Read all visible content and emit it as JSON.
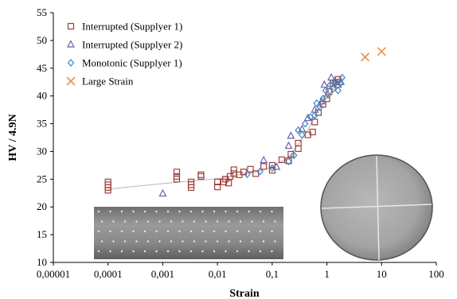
{
  "chart_data": {
    "type": "scatter",
    "title": "",
    "xlabel": "Strain",
    "ylabel": "HV / 4.9N",
    "x_scale": "log",
    "xlim": [
      1e-05,
      100
    ],
    "ylim": [
      10,
      55
    ],
    "grid": false,
    "legend_position": "top-left",
    "x_tick_labels": [
      "0,00001",
      "0,0001",
      "0,001",
      "0,01",
      "0,1",
      "1",
      "10",
      "100"
    ],
    "y_tick_labels": [
      "10",
      "15",
      "20",
      "25",
      "30",
      "35",
      "40",
      "45",
      "50",
      "55"
    ],
    "series": [
      {
        "name": "Interrupted (Supplyer 1)",
        "marker": "square",
        "color": "#A0403A",
        "points": [
          [
            0.0001,
            23.0
          ],
          [
            0.0001,
            23.5
          ],
          [
            0.0001,
            24.0
          ],
          [
            0.0001,
            24.5
          ],
          [
            0.0018,
            25.0
          ],
          [
            0.0018,
            25.5
          ],
          [
            0.0018,
            26.3
          ],
          [
            0.0033,
            23.5
          ],
          [
            0.0033,
            24.0
          ],
          [
            0.0033,
            24.5
          ],
          [
            0.005,
            25.5
          ],
          [
            0.005,
            25.8
          ],
          [
            0.01,
            23.6
          ],
          [
            0.01,
            24.5
          ],
          [
            0.013,
            24.5
          ],
          [
            0.014,
            25.0
          ],
          [
            0.016,
            24.3
          ],
          [
            0.017,
            25.5
          ],
          [
            0.02,
            26.0
          ],
          [
            0.02,
            26.7
          ],
          [
            0.025,
            25.8
          ],
          [
            0.03,
            26.3
          ],
          [
            0.04,
            26.8
          ],
          [
            0.05,
            26.0
          ],
          [
            0.07,
            27.3
          ],
          [
            0.1,
            26.6
          ],
          [
            0.1,
            27.5
          ],
          [
            0.15,
            28.5
          ],
          [
            0.2,
            28.3
          ],
          [
            0.22,
            29.5
          ],
          [
            0.3,
            30.5
          ],
          [
            0.3,
            31.5
          ],
          [
            0.45,
            33.0
          ],
          [
            0.55,
            33.5
          ],
          [
            0.6,
            35.3
          ],
          [
            0.7,
            37.0
          ],
          [
            0.85,
            38.5
          ],
          [
            1.0,
            39.5
          ],
          [
            1.1,
            40.8
          ],
          [
            1.3,
            42.3
          ],
          [
            1.5,
            42.5
          ],
          [
            1.6,
            43.0
          ]
        ]
      },
      {
        "name": "Interrupted (Supplyer 2)",
        "marker": "triangle",
        "color": "#6A62AD",
        "points": [
          [
            0.001,
            22.4
          ],
          [
            0.07,
            28.4
          ],
          [
            0.12,
            27.2
          ],
          [
            0.2,
            31.0
          ],
          [
            0.22,
            32.8
          ],
          [
            0.35,
            34.0
          ],
          [
            0.45,
            36.0
          ],
          [
            0.6,
            37.5
          ],
          [
            0.8,
            39.0
          ],
          [
            0.9,
            42.0
          ],
          [
            1.2,
            43.3
          ],
          [
            1.4,
            42.7
          ],
          [
            1.6,
            42.0
          ],
          [
            1.8,
            42.5
          ]
        ]
      },
      {
        "name": "Monotonic (Supplyer 1)",
        "marker": "diamond",
        "color": "#3E86C0",
        "points": [
          [
            0.035,
            25.9
          ],
          [
            0.06,
            26.4
          ],
          [
            0.1,
            27.0
          ],
          [
            0.2,
            28.2
          ],
          [
            0.25,
            29.3
          ],
          [
            0.3,
            33.8
          ],
          [
            0.35,
            33.0
          ],
          [
            0.4,
            35.0
          ],
          [
            0.5,
            36.2
          ],
          [
            0.6,
            36.5
          ],
          [
            0.65,
            38.7
          ],
          [
            0.75,
            38.0
          ],
          [
            0.85,
            39.5
          ],
          [
            0.95,
            41.0
          ],
          [
            1.05,
            40.2
          ],
          [
            1.15,
            42.0
          ],
          [
            1.3,
            41.3
          ],
          [
            1.45,
            42.5
          ],
          [
            1.6,
            41.0
          ],
          [
            1.75,
            42.3
          ],
          [
            1.9,
            43.3
          ]
        ]
      },
      {
        "name": "Large Strain",
        "marker": "x",
        "color": "#E8914A",
        "points": [
          [
            5.0,
            47.0
          ],
          [
            10.0,
            48.0
          ]
        ]
      }
    ],
    "trend_line": {
      "color": "#B8B8B8",
      "points": [
        [
          0.0001,
          23.2
        ],
        [
          0.001,
          24.2
        ],
        [
          0.01,
          25.1
        ],
        [
          0.05,
          26.3
        ],
        [
          0.1,
          27.2
        ],
        [
          0.2,
          29.0
        ],
        [
          0.4,
          33.0
        ],
        [
          0.7,
          37.5
        ],
        [
          1.0,
          39.8
        ],
        [
          1.5,
          42.0
        ],
        [
          2.0,
          43.2
        ]
      ]
    },
    "inset_images": [
      {
        "name": "indentation-grid-photo",
        "description_visible": false
      },
      {
        "name": "specimen-cross-section-photo",
        "description_visible": false
      }
    ]
  }
}
